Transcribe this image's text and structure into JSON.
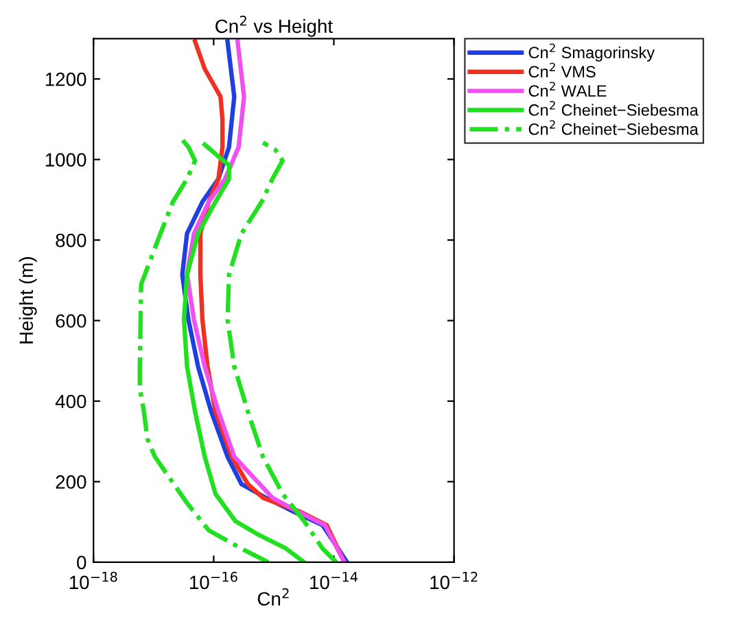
{
  "chart_data": {
    "type": "line",
    "title": "Cn$^{2}$ vs Height",
    "xlabel": "Cn$^{2}$",
    "ylabel": "Height (m)",
    "log": "x",
    "xlim": [
      1e-18,
      1e-12
    ],
    "xticks": [
      {
        "value": 1e-18,
        "label": "10$^{−18}$"
      },
      {
        "value": 1e-16,
        "label": "10$^{−16}$"
      },
      {
        "value": 1e-14,
        "label": "10$^{−14}$"
      },
      {
        "value": 1e-12,
        "label": "10$^{−12}$"
      }
    ],
    "ylim": [
      0,
      1300
    ],
    "yticks": [
      0,
      200,
      400,
      600,
      800,
      1000,
      1200
    ],
    "grid": false,
    "legend": "top right",
    "series": [
      {
        "name": "Cn$^{2}$ Smagorinsky",
        "color": "#1f3fe0",
        "line_style": "solid",
        "x": [
          1.66e-14,
          6.5e-15,
          2.1e-15,
          7.4e-16,
          2.9e-16,
          1.7e-16,
          9.1e-17,
          5.5e-17,
          3.8e-17,
          3e-17,
          3.6e-17,
          6.5e-17,
          1.2e-16,
          1.8e-16,
          2.2e-16,
          1.7e-16
        ],
        "values": [
          0,
          92,
          126,
          160,
          194,
          262,
          374,
          486,
          602,
          714,
          816,
          895,
          952,
          1031,
          1156,
          1293
        ]
      },
      {
        "name": "Cn$^{2}$ VMS",
        "color": "#f03020",
        "line_style": "solid",
        "x": [
          1.5e-14,
          7.6e-15,
          2.7e-15,
          6.6e-16,
          3.7e-16,
          2e-16,
          1.07e-16,
          7.9e-17,
          6.5e-17,
          6e-17,
          6e-17,
          8.3e-17,
          1.2e-16,
          1.4e-16,
          1.4e-16,
          1.3e-16,
          7.1e-17,
          4.9e-17
        ],
        "values": [
          0,
          92,
          126,
          160,
          194,
          262,
          374,
          486,
          602,
          714,
          816,
          895,
          952,
          1031,
          1099,
          1156,
          1225,
          1293
        ]
      },
      {
        "name": "Cn$^{2}$ WALE",
        "color": "#f050f0",
        "line_style": "solid",
        "x": [
          1.5e-14,
          7.1e-15,
          2.5e-15,
          9.5e-16,
          2.2e-16,
          1.2e-16,
          7.1e-17,
          4.7e-17,
          3.6e-17,
          4.7e-17,
          8.3e-17,
          1.55e-16,
          2.6e-16,
          3.2e-16,
          2.5e-16
        ],
        "values": [
          0,
          92,
          126,
          160,
          262,
          374,
          486,
          602,
          714,
          816,
          895,
          952,
          1031,
          1156,
          1293
        ]
      },
      {
        "name": "Cn$^{2}$ Cheinet−Siebesma",
        "color": "#20e020",
        "line_style": "solid",
        "x": [
          3.2e-15,
          1.6e-15,
          5.6e-16,
          2.3e-16,
          1.07e-16,
          7.1e-17,
          4.9e-17,
          3.6e-17,
          3.2e-17,
          3.6e-17,
          5.5e-17,
          1.07e-16,
          1.8e-16,
          1.8e-16,
          1.3e-16,
          7.1e-17
        ],
        "values": [
          0,
          34,
          68,
          102,
          170,
          262,
          374,
          486,
          602,
          714,
          816,
          895,
          952,
          986,
          1003,
          1037
        ]
      },
      {
        "name": "Cn$^{2}$ Cheinet−Siebesma",
        "color": "#20e020",
        "line_style": "dashdot",
        "x": [
          8.1e-16,
          2.9e-16,
          8.3e-17,
          3.6e-17,
          1.05e-17,
          7.9e-18,
          6.9e-18,
          5.9e-18,
          5.9e-18,
          6.2e-18,
          1.3e-17,
          2.1e-17,
          3.6e-17,
          4.9e-17,
          3.8e-17,
          2.8e-17
        ],
        "values": [
          0,
          34,
          79,
          147,
          262,
          306,
          374,
          432,
          486,
          690,
          816,
          895,
          952,
          997,
          1031,
          1054
        ]
      },
      {
        "color": "#20e020",
        "line_style": "dashdot",
        "x": [
          1.1e-14,
          6.5e-15,
          3.2e-15,
          1.4e-15,
          6.6e-16,
          3.7e-16,
          2.2e-16,
          1.7e-16,
          1.8e-16,
          2.9e-16,
          6.3e-16,
          9.5e-16,
          1.4e-15,
          1.05e-15,
          6.6e-16
        ],
        "values": [
          0,
          34,
          102,
          170,
          262,
          374,
          486,
          602,
          714,
          816,
          895,
          952,
          997,
          1025,
          1042
        ]
      }
    ]
  }
}
